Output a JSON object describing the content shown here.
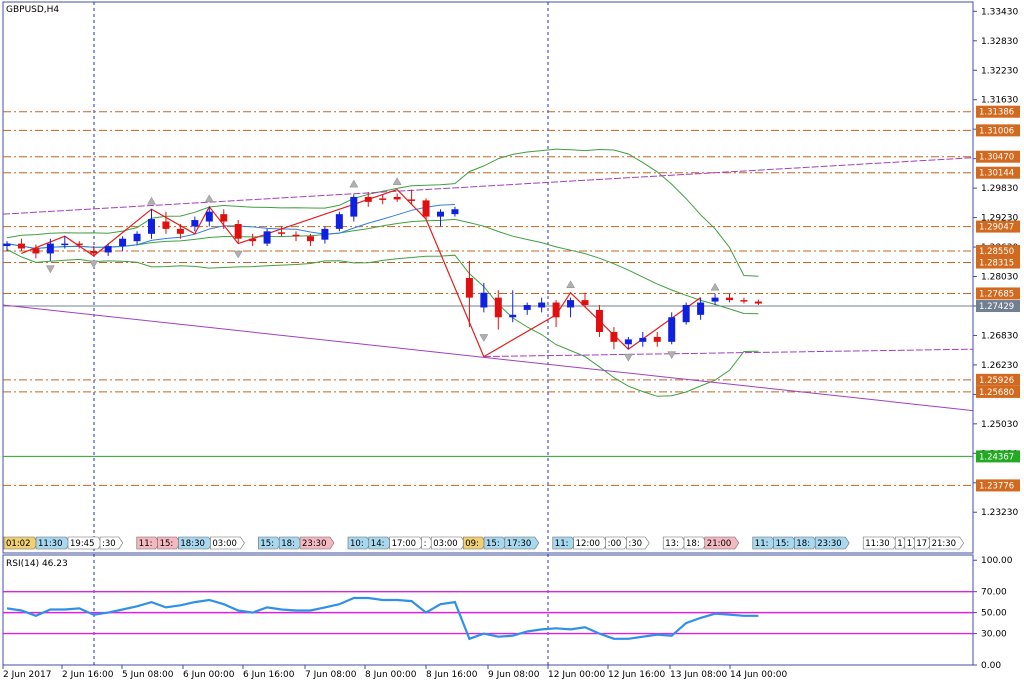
{
  "chart_data": {
    "type": "candlestick",
    "symbol_label": "GBPUSD,H4",
    "price_axis": {
      "ylim": [
        1.224,
        1.3362
      ],
      "tick_labels": [
        "1.33430",
        "1.32830",
        "1.32230",
        "1.31630",
        "1.31030",
        "1.30430",
        "1.29830",
        "1.29230",
        "1.28630",
        "1.28030",
        "1.27430",
        "1.26830",
        "1.26230",
        "1.25630",
        "1.25030",
        "1.24430",
        "1.23830",
        "1.23230"
      ]
    },
    "horizontal_levels": [
      {
        "label": "1.31386",
        "value": 1.31386,
        "style": "dash-dot",
        "color": "#c8641e"
      },
      {
        "label": "1.31006",
        "value": 1.31006,
        "style": "dash-dot",
        "color": "#c8641e"
      },
      {
        "label": "1.30470",
        "value": 1.3047,
        "style": "dash-dot",
        "color": "#c8641e"
      },
      {
        "label": "1.30144",
        "value": 1.30144,
        "style": "dash-dot",
        "color": "#c8641e"
      },
      {
        "label": "1.29047",
        "value": 1.29047,
        "style": "dash-dot",
        "color": "#c8641e"
      },
      {
        "label": "1.28550",
        "value": 1.2855,
        "style": "dash-dot",
        "color": "#c8641e"
      },
      {
        "label": "1.28315",
        "value": 1.28315,
        "style": "dash-dot",
        "color": "#c8641e"
      },
      {
        "label": "1.27685",
        "value": 1.27685,
        "style": "dash-dot",
        "color": "#c8641e"
      },
      {
        "label": "1.25926",
        "value": 1.25926,
        "style": "dash-dot",
        "color": "#c8641e"
      },
      {
        "label": "1.25680",
        "value": 1.2568,
        "style": "dash-dot",
        "color": "#c8641e"
      },
      {
        "label": "1.24367",
        "value": 1.24367,
        "style": "solid",
        "color": "#22aa22"
      },
      {
        "label": "1.23776",
        "value": 1.23776,
        "style": "dash-dot",
        "color": "#c8641e"
      }
    ],
    "current_price": {
      "label": "1.27429",
      "value": 1.27429
    },
    "candles": [
      [
        1.2865,
        1.2875,
        1.2855,
        1.287
      ],
      [
        1.287,
        1.288,
        1.2855,
        1.286
      ],
      [
        1.286,
        1.2868,
        1.284,
        1.285
      ],
      [
        1.285,
        1.288,
        1.2835,
        1.287
      ],
      [
        1.287,
        1.2885,
        1.286,
        1.287
      ],
      [
        1.287,
        1.2875,
        1.286,
        1.2868
      ],
      [
        1.2855,
        1.2865,
        1.2845,
        1.285
      ],
      [
        1.2852,
        1.287,
        1.2845,
        1.2865
      ],
      [
        1.2865,
        1.2885,
        1.2855,
        1.288
      ],
      [
        1.2875,
        1.2895,
        1.2868,
        1.289
      ],
      [
        1.289,
        1.294,
        1.288,
        1.292
      ],
      [
        1.2915,
        1.2935,
        1.289,
        1.29
      ],
      [
        1.29,
        1.291,
        1.288,
        1.289
      ],
      [
        1.2905,
        1.2925,
        1.2895,
        1.2918
      ],
      [
        1.2915,
        1.2945,
        1.2905,
        1.2935
      ],
      [
        1.293,
        1.294,
        1.29,
        1.2915
      ],
      [
        1.291,
        1.2918,
        1.287,
        1.288
      ],
      [
        1.288,
        1.289,
        1.2865,
        1.2875
      ],
      [
        1.287,
        1.29,
        1.2865,
        1.2895
      ],
      [
        1.2893,
        1.2905,
        1.2885,
        1.289
      ],
      [
        1.2888,
        1.2895,
        1.2875,
        1.2885
      ],
      [
        1.2885,
        1.289,
        1.2865,
        1.2875
      ],
      [
        1.2878,
        1.2905,
        1.287,
        1.29
      ],
      [
        1.29,
        1.2935,
        1.2895,
        1.293
      ],
      [
        1.2925,
        1.297,
        1.2915,
        1.2965
      ],
      [
        1.2965,
        1.2975,
        1.2945,
        1.2955
      ],
      [
        1.2962,
        1.297,
        1.295,
        1.296
      ],
      [
        1.2965,
        1.2972,
        1.2955,
        1.296
      ],
      [
        1.296,
        1.298,
        1.295,
        1.2958
      ],
      [
        1.2958,
        1.2962,
        1.292,
        1.2925
      ],
      [
        1.2925,
        1.294,
        1.2905,
        1.2935
      ],
      [
        1.293,
        1.2945,
        1.2925,
        1.294
      ],
      [
        1.28,
        1.2835,
        1.27,
        1.276
      ],
      [
        1.274,
        1.279,
        1.273,
        1.277
      ],
      [
        1.276,
        1.2775,
        1.2695,
        1.272
      ],
      [
        1.272,
        1.2775,
        1.271,
        1.2725
      ],
      [
        1.2735,
        1.275,
        1.2725,
        1.2745
      ],
      [
        1.274,
        1.276,
        1.273,
        1.275
      ],
      [
        1.275,
        1.2755,
        1.27,
        1.272
      ],
      [
        1.274,
        1.276,
        1.272,
        1.2755
      ],
      [
        1.2755,
        1.277,
        1.274,
        1.2745
      ],
      [
        1.2735,
        1.2745,
        1.268,
        1.269
      ],
      [
        1.269,
        1.27,
        1.2655,
        1.267
      ],
      [
        1.2665,
        1.268,
        1.2655,
        1.2675
      ],
      [
        1.267,
        1.269,
        1.266,
        1.2678
      ],
      [
        1.268,
        1.269,
        1.266,
        1.267
      ],
      [
        1.267,
        1.273,
        1.2665,
        1.272
      ],
      [
        1.271,
        1.275,
        1.2705,
        1.2745
      ],
      [
        1.2725,
        1.276,
        1.2715,
        1.275
      ],
      [
        1.2752,
        1.2768,
        1.2745,
        1.276
      ],
      [
        1.276,
        1.2768,
        1.275,
        1.2755
      ],
      [
        1.2755,
        1.276,
        1.2748,
        1.2752
      ],
      [
        1.2752,
        1.2756,
        1.2745,
        1.2748
      ]
    ],
    "rsi": {
      "label": "RSI(14) 46.23",
      "ylim": [
        0,
        105
      ],
      "levels": [
        70,
        50,
        30
      ],
      "tick_labels": [
        "100.00",
        "70.00",
        "50.00",
        "30.00",
        "0.00"
      ],
      "values": [
        54,
        52,
        47,
        53,
        53,
        54,
        48,
        50,
        53,
        56,
        60,
        55,
        57,
        60,
        62,
        58,
        52,
        50,
        55,
        53,
        52,
        52,
        55,
        58,
        64,
        64,
        62,
        62,
        61,
        50,
        58,
        60,
        25,
        30,
        27,
        28,
        32,
        34,
        35,
        34,
        36,
        30,
        25,
        25,
        27,
        29,
        28,
        40,
        45,
        49,
        48,
        47,
        47
      ]
    },
    "x_labels": [
      "2 Jun 2017",
      "2 Jun 16:00",
      "5 Jun 08:00",
      "6 Jun 00:00",
      "6 Jun 16:00",
      "7 Jun 08:00",
      "8 Jun 00:00",
      "8 Jun 16:00",
      "9 Jun 08:00",
      "12 Jun 00:00",
      "12 Jun 16:00",
      "13 Jun 08:00",
      "14 Jun 00:00"
    ],
    "time_tags": [
      {
        "text": "01:02",
        "color": "#f0d070"
      },
      {
        "text": "11:30",
        "color": "#a8d8f0"
      },
      {
        "text": "19:45",
        "color": "#ffffff"
      },
      {
        "text": ":30",
        "color": "#ffffff"
      },
      {
        "text": "11:",
        "color": "#f4b8c0"
      },
      {
        "text": "15:",
        "color": "#f4b8c0"
      },
      {
        "text": "18:30",
        "color": "#a8d8f0"
      },
      {
        "text": "03:00",
        "color": "#ffffff"
      },
      {
        "text": "15:",
        "color": "#a8d8f0"
      },
      {
        "text": "18:",
        "color": "#a8d8f0"
      },
      {
        "text": "23:30",
        "color": "#f4b8c0"
      },
      {
        "text": "10:",
        "color": "#a8d8f0"
      },
      {
        "text": "14:",
        "color": "#a8d8f0"
      },
      {
        "text": "17:00",
        "color": "#ffffff"
      },
      {
        "text": ":",
        "color": "#ffffff"
      },
      {
        "text": "03:00",
        "color": "#ffffff"
      },
      {
        "text": "09:",
        "color": "#f0d070"
      },
      {
        "text": "15:",
        "color": "#a8d8f0"
      },
      {
        "text": "17:30",
        "color": "#a8d8f0"
      },
      {
        "text": "11:",
        "color": "#a8d8f0"
      },
      {
        "text": "12:00",
        "color": "#ffffff"
      },
      {
        "text": ":00",
        "color": "#ffffff"
      },
      {
        "text": ":30",
        "color": "#ffffff"
      },
      {
        "text": "13:",
        "color": "#ffffff"
      },
      {
        "text": "18:",
        "color": "#ffffff"
      },
      {
        "text": "21:00",
        "color": "#f4b8c0"
      },
      {
        "text": "11:",
        "color": "#a8d8f0"
      },
      {
        "text": "15:",
        "color": "#a8d8f0"
      },
      {
        "text": "18:",
        "color": "#a8d8f0"
      },
      {
        "text": "23:30",
        "color": "#a8d8f0"
      },
      {
        "text": "11:30",
        "color": "#ffffff"
      },
      {
        "text": "1",
        "color": "#ffffff"
      },
      {
        "text": "1",
        "color": "#ffffff"
      },
      {
        "text": "17",
        "color": "#ffffff"
      },
      {
        "text": "21:30",
        "color": "#ffffff"
      },
      {
        "text": "1",
        "color": "#ffffff"
      },
      {
        "text": "1",
        "color": "#ffffff"
      },
      {
        "text": "17:3",
        "color": "#ffffff"
      },
      {
        "text": "23:",
        "color": "#ffffff"
      },
      {
        "text": "03:00",
        "color": "#ffffff"
      },
      {
        "text": "1",
        "color": "#ffffff"
      }
    ],
    "colors": {
      "bull": "#1020e0",
      "bear": "#e01010",
      "bollinger": "#40a040",
      "channel": "#a040c0",
      "zigzag": "#e02020",
      "ma_blue": "#3080e0",
      "rsi_line": "#3090e8",
      "rsi_levels": "#e020e0",
      "level_tag": "#d2691e",
      "support_tag": "#22aa22",
      "current_tag": "#708090",
      "session_sep": "#2030c0",
      "axis": "#4050a0"
    },
    "grid": false
  }
}
